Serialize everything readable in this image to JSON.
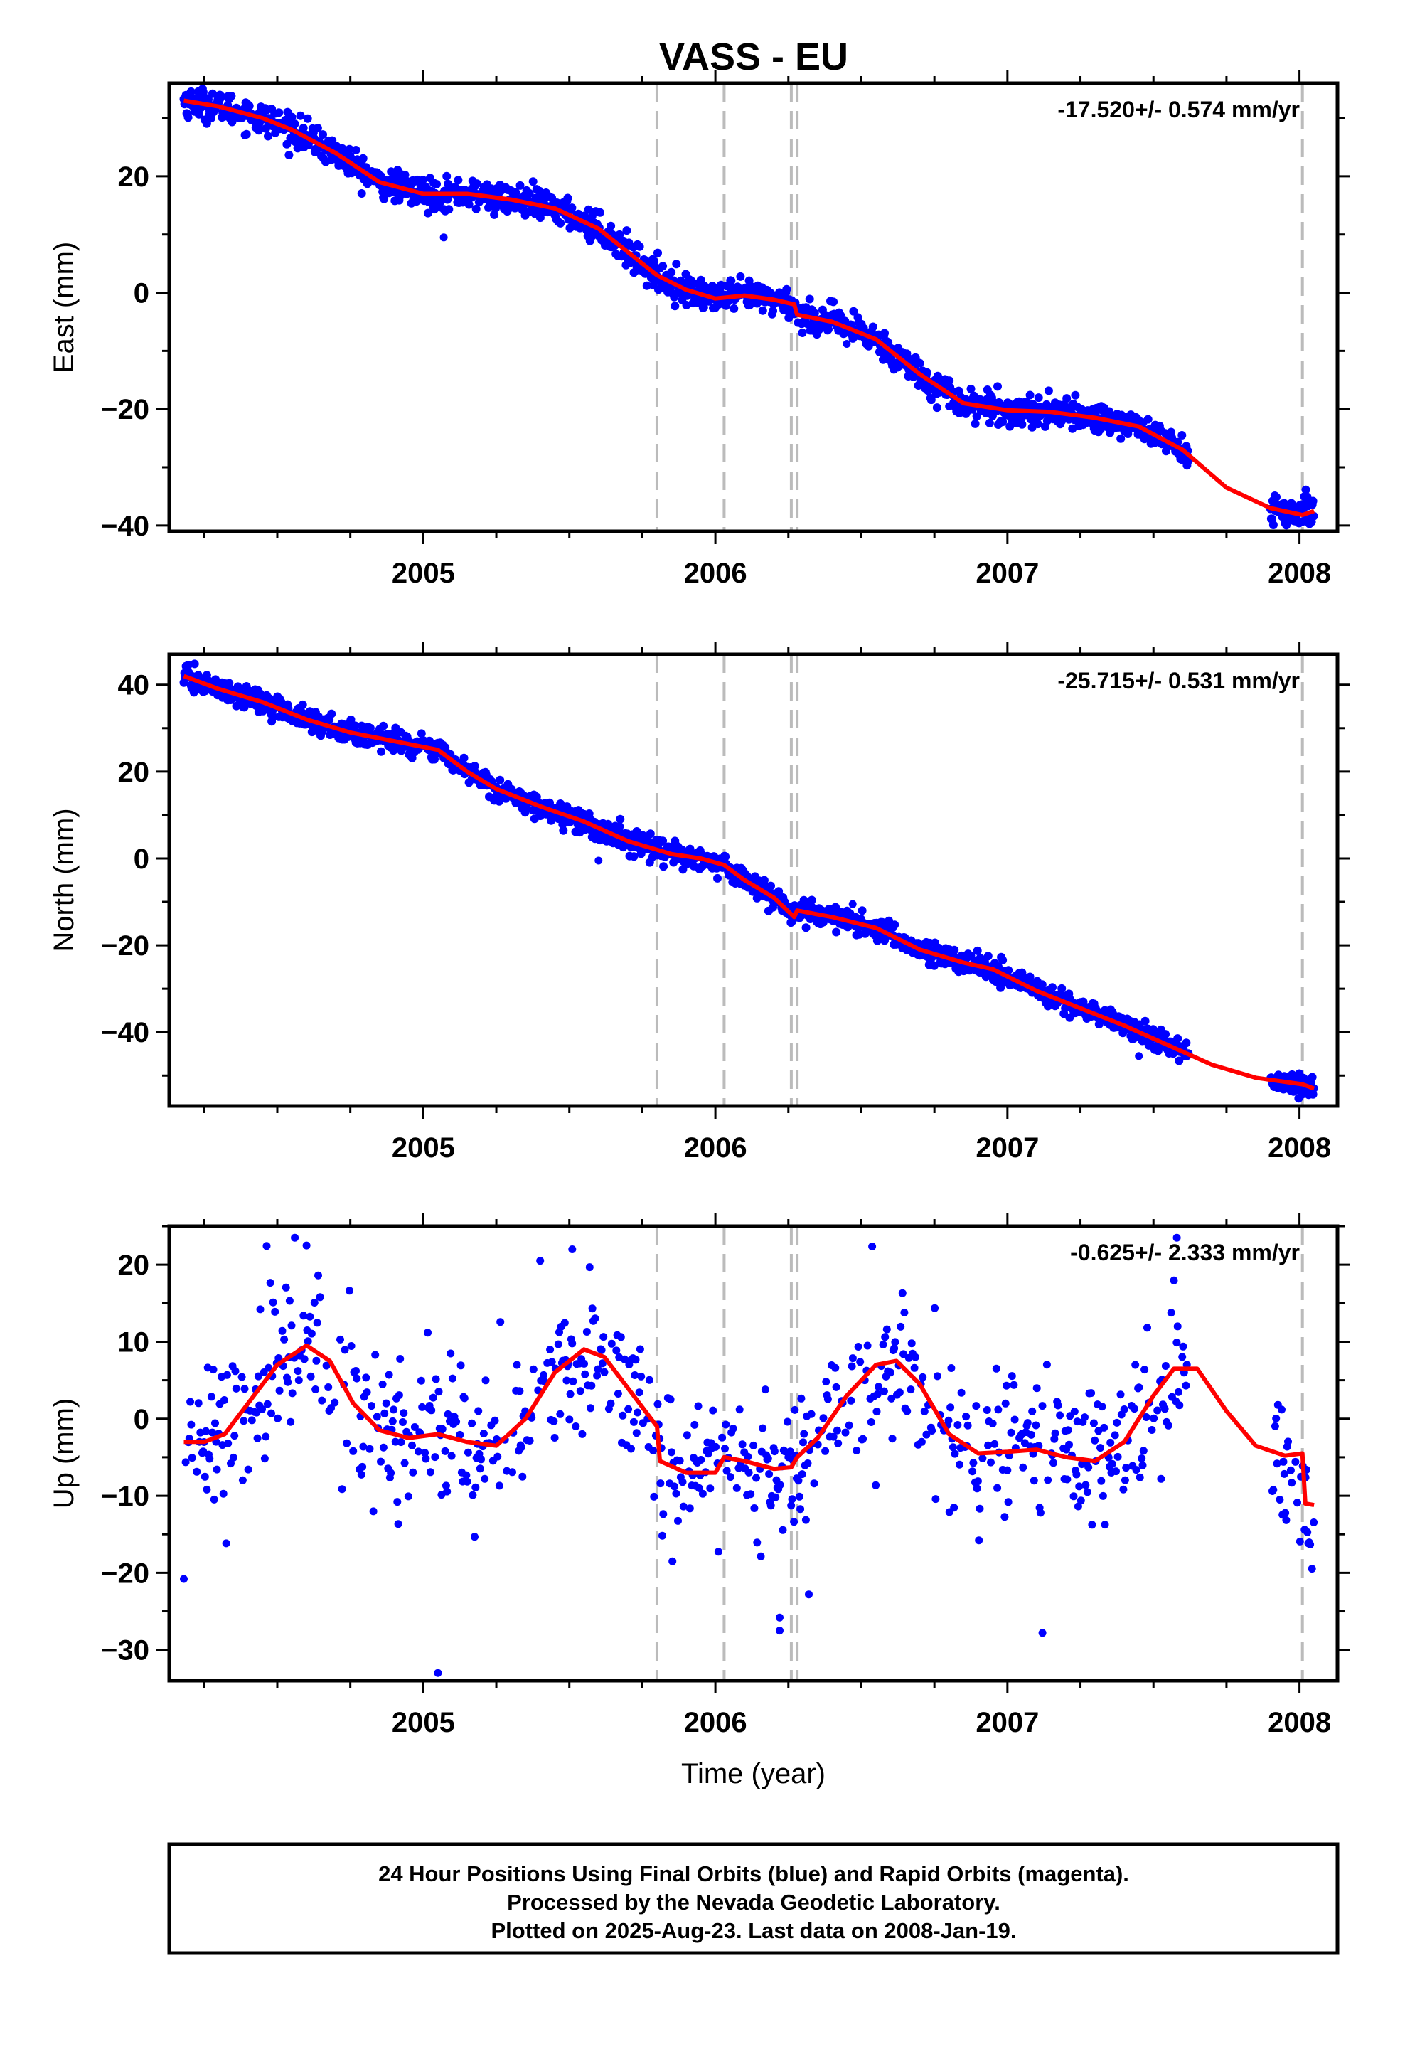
{
  "title": "VASS - EU",
  "footer": {
    "lines": [
      "24 Hour Positions Using Final Orbits (blue) and Rapid Orbits (magenta).",
      "Processed by the Nevada Geodetic Laboratory.",
      "Plotted on 2025-Aug-23. Last data on 2008-Jan-19."
    ]
  },
  "colors": {
    "points": "#0000ff",
    "fit": "#ff0000",
    "breaks": "#bbbbbb",
    "frame": "#000000"
  },
  "chart_data": [
    {
      "type": "scatter",
      "ylabel": "East (mm)",
      "xlabel": "",
      "rate_label": "-17.520+/- 0.574 mm/yr",
      "xlim": [
        2004.13,
        2008.13
      ],
      "ylim": [
        -41,
        36
      ],
      "xticks": [
        2005,
        2006,
        2007,
        2008
      ],
      "xticklabels": [
        "2005",
        "2006",
        "2007",
        "2008"
      ],
      "yticks": [
        20,
        0,
        -20,
        -40
      ],
      "yticklabels": [
        "20",
        "0",
        "−20",
        "−40"
      ],
      "breaks": [
        2005.8,
        2006.03,
        2006.26,
        2006.28,
        2008.01
      ],
      "gaps": [
        [
          2007.62,
          2007.9
        ]
      ],
      "noise": 1.3,
      "outliers": [
        [
          2005.07,
          9.5
        ],
        [
          2006.8,
          -19.5
        ],
        [
          2006.45,
          -8.8
        ]
      ],
      "fit": {
        "x": [
          2004.18,
          2004.3,
          2004.45,
          2004.55,
          2004.7,
          2004.85,
          2005.0,
          2005.15,
          2005.3,
          2005.45,
          2005.6,
          2005.7,
          2005.8,
          2005.9,
          2006.0,
          2006.1,
          2006.2,
          2006.27,
          2006.28,
          2006.4,
          2006.55,
          2006.7,
          2006.85,
          2007.0,
          2007.15,
          2007.3,
          2007.45,
          2007.6,
          2007.75,
          2007.9,
          2008.01,
          2008.05
        ],
        "y": [
          33,
          32,
          30,
          28,
          24,
          19,
          17,
          17,
          16,
          14.5,
          11,
          7,
          3,
          0.5,
          -1,
          -0.5,
          -1.2,
          -2,
          -3.8,
          -5,
          -8,
          -14,
          -19,
          -20.2,
          -20.5,
          -21.5,
          -23,
          -27,
          -33.5,
          -37,
          -38.2,
          -37.5
        ]
      }
    },
    {
      "type": "scatter",
      "ylabel": "North (mm)",
      "xlabel": "",
      "rate_label": "-25.715+/- 0.531 mm/yr",
      "xlim": [
        2004.13,
        2008.13
      ],
      "ylim": [
        -57,
        47
      ],
      "xticks": [
        2005,
        2006,
        2007,
        2008
      ],
      "xticklabels": [
        "2005",
        "2006",
        "2007",
        "2008"
      ],
      "yticks": [
        40,
        20,
        0,
        -20,
        -40
      ],
      "yticklabels": [
        "40",
        "20",
        "0",
        "−20",
        "−40"
      ],
      "breaks": [
        2005.8,
        2006.03,
        2006.26,
        2006.28,
        2008.01
      ],
      "gaps": [
        [
          2007.62,
          2007.9
        ]
      ],
      "noise": 1.3,
      "outliers": [
        [
          2005.6,
          -0.5
        ],
        [
          2006.47,
          -10.5
        ],
        [
          2007.45,
          -45.5
        ]
      ],
      "fit": {
        "x": [
          2004.18,
          2004.3,
          2004.45,
          2004.6,
          2004.75,
          2004.9,
          2005.05,
          2005.15,
          2005.25,
          2005.4,
          2005.55,
          2005.7,
          2005.85,
          2005.95,
          2006.03,
          2006.1,
          2006.2,
          2006.27,
          2006.28,
          2006.4,
          2006.55,
          2006.7,
          2006.85,
          2006.95,
          2007.1,
          2007.25,
          2007.4,
          2007.55,
          2007.7,
          2007.85,
          2008.01,
          2008.05
        ],
        "y": [
          42,
          39,
          36,
          32,
          29,
          27,
          25,
          20,
          16,
          12,
          8.5,
          4,
          1,
          0,
          -1.5,
          -5,
          -9,
          -13.5,
          -12,
          -13.5,
          -16,
          -21,
          -24,
          -25.5,
          -30.5,
          -34.5,
          -38.5,
          -43,
          -47.5,
          -50.5,
          -52,
          -53
        ]
      }
    },
    {
      "type": "scatter",
      "ylabel": "Up (mm)",
      "xlabel": "Time (year)",
      "rate_label": "-0.625+/- 2.333 mm/yr",
      "xlim": [
        2004.13,
        2008.13
      ],
      "ylim": [
        -34,
        25
      ],
      "xticks": [
        2005,
        2006,
        2007,
        2008
      ],
      "xticklabels": [
        "2005",
        "2006",
        "2007",
        "2008"
      ],
      "yticks": [
        20,
        10,
        0,
        -10,
        -20,
        -30
      ],
      "yticklabels": [
        "20",
        "10",
        "0",
        "−10",
        "−20",
        "−30"
      ],
      "breaks": [
        2005.8,
        2006.03,
        2006.26,
        2006.28,
        2008.01
      ],
      "gaps": [
        [
          2007.62,
          2007.9
        ]
      ],
      "noise": 5.0,
      "outliers": [
        [
          2004.18,
          -20.8
        ],
        [
          2004.56,
          23.5
        ],
        [
          2004.6,
          22.5
        ],
        [
          2005.05,
          -33
        ],
        [
          2005.51,
          22
        ],
        [
          2005.4,
          20.5
        ],
        [
          2006.22,
          -25.8
        ],
        [
          2006.22,
          -27.5
        ],
        [
          2007.12,
          -27.8
        ],
        [
          2007.58,
          23.5
        ],
        [
          2006.32,
          -22.8
        ]
      ],
      "fit": {
        "x": [
          2004.18,
          2004.25,
          2004.32,
          2004.4,
          2004.5,
          2004.6,
          2004.68,
          2004.76,
          2004.85,
          2004.95,
          2005.05,
          2005.15,
          2005.25,
          2005.35,
          2005.45,
          2005.55,
          2005.62,
          2005.7,
          2005.78,
          2005.8,
          2005.81,
          2005.9,
          2006.0,
          2006.03,
          2006.1,
          2006.2,
          2006.26,
          2006.28,
          2006.35,
          2006.45,
          2006.55,
          2006.62,
          2006.7,
          2006.8,
          2006.9,
          2007.0,
          2007.1,
          2007.2,
          2007.3,
          2007.4,
          2007.5,
          2007.57,
          2007.65,
          2007.75,
          2007.85,
          2007.95,
          2008.01,
          2008.02,
          2008.05
        ],
        "y": [
          -3,
          -3,
          -2,
          2,
          7,
          9.5,
          7.5,
          2,
          -1.5,
          -2.5,
          -2,
          -3,
          -3.5,
          0,
          6,
          9,
          8,
          4,
          0,
          -1,
          -5.5,
          -7,
          -7,
          -5,
          -5.5,
          -6.5,
          -6.3,
          -5,
          -2.5,
          3,
          7,
          7.5,
          4.5,
          -2,
          -4.5,
          -4.3,
          -4,
          -5,
          -5.5,
          -3,
          3,
          6.5,
          6.5,
          1,
          -3.5,
          -4.8,
          -4.5,
          -11,
          -11.2
        ]
      }
    }
  ]
}
